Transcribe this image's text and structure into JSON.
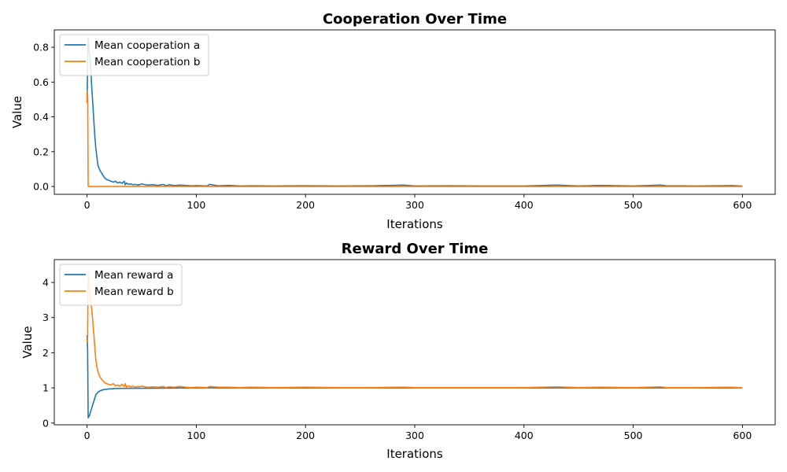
{
  "chart_data": [
    {
      "type": "line",
      "title": "Cooperation Over Time",
      "xlabel": "Iterations",
      "ylabel": "Value",
      "xlim": [
        -30,
        630
      ],
      "ylim": [
        -0.045,
        0.9
      ],
      "xticks": [
        0,
        100,
        200,
        300,
        400,
        500,
        600
      ],
      "xtick_labels": [
        "0",
        "100",
        "200",
        "300",
        "400",
        "500",
        "600"
      ],
      "yticks": [
        0.0,
        0.2,
        0.4,
        0.6,
        0.8
      ],
      "ytick_labels": [
        "0.0",
        "0.2",
        "0.4",
        "0.6",
        "0.8"
      ],
      "grid": false,
      "legend_position": "top-left",
      "series": [
        {
          "name": "Mean cooperation a",
          "color": "#1f77b4",
          "x": [
            0,
            1,
            2,
            3,
            4,
            5,
            6,
            7,
            8,
            9,
            10,
            12,
            14,
            16,
            18,
            20,
            22,
            24,
            26,
            28,
            30,
            32,
            34,
            35,
            36,
            38,
            40,
            42,
            44,
            46,
            48,
            50,
            55,
            60,
            65,
            70,
            72,
            75,
            80,
            85,
            90,
            95,
            100,
            110,
            112,
            120,
            130,
            140,
            150,
            170,
            200,
            230,
            260,
            290,
            300,
            330,
            360,
            400,
            430,
            450,
            470,
            500,
            525,
            530,
            560,
            590,
            600
          ],
          "y": [
            0.5,
            0.85,
            0.78,
            0.72,
            0.6,
            0.5,
            0.4,
            0.3,
            0.22,
            0.17,
            0.12,
            0.09,
            0.07,
            0.05,
            0.04,
            0.035,
            0.03,
            0.025,
            0.03,
            0.02,
            0.025,
            0.018,
            0.03,
            0.01,
            0.02,
            0.012,
            0.015,
            0.01,
            0.012,
            0.008,
            0.01,
            0.015,
            0.008,
            0.01,
            0.006,
            0.012,
            0.004,
            0.01,
            0.005,
            0.008,
            0.006,
            0.004,
            0.005,
            0.003,
            0.012,
            0.004,
            0.006,
            0.003,
            0.004,
            0.003,
            0.004,
            0.003,
            0.004,
            0.008,
            0.003,
            0.004,
            0.003,
            0.003,
            0.008,
            0.003,
            0.006,
            0.003,
            0.008,
            0.004,
            0.003,
            0.005,
            0.002
          ]
        },
        {
          "name": "Mean cooperation b",
          "color": "#ff7f0e",
          "x": [
            0,
            0.3,
            0.6,
            1,
            50,
            100,
            200,
            300,
            400,
            500,
            600
          ],
          "y": [
            0.48,
            0.55,
            0.5,
            0.0,
            0.0,
            0.0,
            0.0,
            0.0,
            0.0,
            0.0,
            0.0
          ]
        }
      ]
    },
    {
      "type": "line",
      "title": "Reward Over Time",
      "xlabel": "Iterations",
      "ylabel": "Value",
      "xlim": [
        -30,
        630
      ],
      "ylim": [
        -0.05,
        4.65
      ],
      "xticks": [
        0,
        100,
        200,
        300,
        400,
        500,
        600
      ],
      "xtick_labels": [
        "0",
        "100",
        "200",
        "300",
        "400",
        "500",
        "600"
      ],
      "yticks": [
        0,
        1,
        2,
        3,
        4
      ],
      "ytick_labels": [
        "0",
        "1",
        "2",
        "3",
        "4"
      ],
      "grid": false,
      "legend_position": "top-left",
      "series": [
        {
          "name": "Mean reward a",
          "color": "#1f77b4",
          "x": [
            0,
            0.5,
            1,
            2,
            3,
            4,
            5,
            6,
            7,
            8,
            10,
            12,
            15,
            20,
            25,
            30,
            40,
            50,
            100,
            200,
            300,
            400,
            500,
            600
          ],
          "y": [
            2.5,
            2.1,
            0.15,
            0.2,
            0.3,
            0.4,
            0.5,
            0.6,
            0.7,
            0.8,
            0.88,
            0.92,
            0.95,
            0.97,
            0.98,
            0.985,
            0.99,
            0.99,
            1.0,
            1.0,
            1.0,
            1.0,
            1.0,
            1.0
          ]
        },
        {
          "name": "Mean reward b",
          "color": "#ff7f0e",
          "x": [
            0,
            0.5,
            1,
            2,
            3,
            4,
            5,
            6,
            7,
            8,
            9,
            10,
            12,
            14,
            16,
            18,
            20,
            22,
            24,
            26,
            28,
            30,
            32,
            34,
            35,
            36,
            38,
            40,
            42,
            44,
            46,
            48,
            50,
            55,
            60,
            65,
            70,
            72,
            75,
            80,
            85,
            90,
            95,
            100,
            110,
            112,
            120,
            130,
            140,
            150,
            170,
            200,
            230,
            260,
            290,
            300,
            330,
            360,
            400,
            430,
            450,
            470,
            500,
            525,
            530,
            560,
            590,
            600
          ],
          "y": [
            2.3,
            2.4,
            4.3,
            3.9,
            3.6,
            3.3,
            3.0,
            2.6,
            2.2,
            1.8,
            1.6,
            1.45,
            1.3,
            1.22,
            1.15,
            1.12,
            1.1,
            1.08,
            1.12,
            1.06,
            1.08,
            1.05,
            1.1,
            1.04,
            1.12,
            1.02,
            1.06,
            1.03,
            1.05,
            1.02,
            1.04,
            1.03,
            1.05,
            1.02,
            1.03,
            1.02,
            1.04,
            1.01,
            1.03,
            1.02,
            1.04,
            1.02,
            1.01,
            1.02,
            1.01,
            1.04,
            1.02,
            1.02,
            1.01,
            1.02,
            1.01,
            1.02,
            1.01,
            1.01,
            1.02,
            1.01,
            1.01,
            1.01,
            1.01,
            1.03,
            1.01,
            1.02,
            1.01,
            1.03,
            1.01,
            1.01,
            1.02,
            1.0
          ]
        }
      ]
    }
  ]
}
